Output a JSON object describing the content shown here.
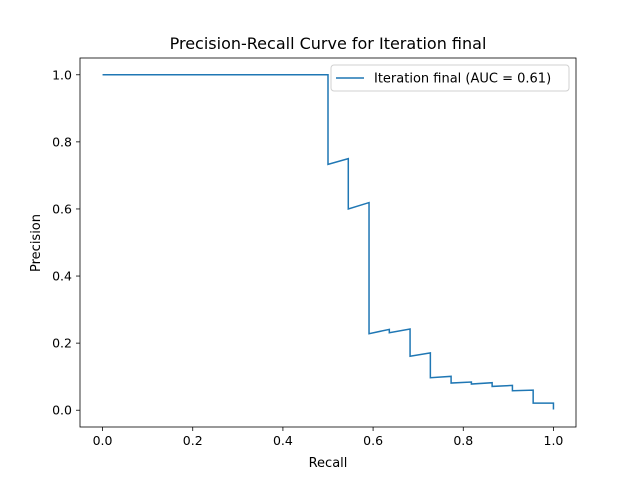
{
  "chart_data": {
    "type": "line",
    "step": "post",
    "title": "Precision-Recall Curve for Iteration final",
    "xlabel": "Recall",
    "ylabel": "Precision",
    "xlim": [
      -0.05,
      1.05
    ],
    "ylim": [
      -0.05,
      1.05
    ],
    "xticks": [
      "0.0",
      "0.2",
      "0.4",
      "0.6",
      "0.8",
      "1.0"
    ],
    "yticks": [
      "0.0",
      "0.2",
      "0.4",
      "0.6",
      "0.8",
      "1.0"
    ],
    "grid": false,
    "legend_position": "upper right",
    "series": [
      {
        "name": "Iteration final (AUC = 0.61)",
        "color": "#1f77b4",
        "points": [
          [
            0.0,
            1.0
          ],
          [
            0.5,
            1.0
          ],
          [
            0.5,
            0.733
          ],
          [
            0.545,
            0.75
          ],
          [
            0.545,
            0.6
          ],
          [
            0.591,
            0.619
          ],
          [
            0.591,
            0.228
          ],
          [
            0.636,
            0.241
          ],
          [
            0.636,
            0.231
          ],
          [
            0.682,
            0.242
          ],
          [
            0.682,
            0.161
          ],
          [
            0.727,
            0.171
          ],
          [
            0.727,
            0.097
          ],
          [
            0.773,
            0.101
          ],
          [
            0.773,
            0.081
          ],
          [
            0.818,
            0.084
          ],
          [
            0.818,
            0.078
          ],
          [
            0.864,
            0.082
          ],
          [
            0.864,
            0.071
          ],
          [
            0.909,
            0.074
          ],
          [
            0.909,
            0.058
          ],
          [
            0.955,
            0.06
          ],
          [
            0.955,
            0.021
          ],
          [
            1.0,
            0.021
          ],
          [
            1.0,
            0.002
          ]
        ]
      }
    ]
  }
}
